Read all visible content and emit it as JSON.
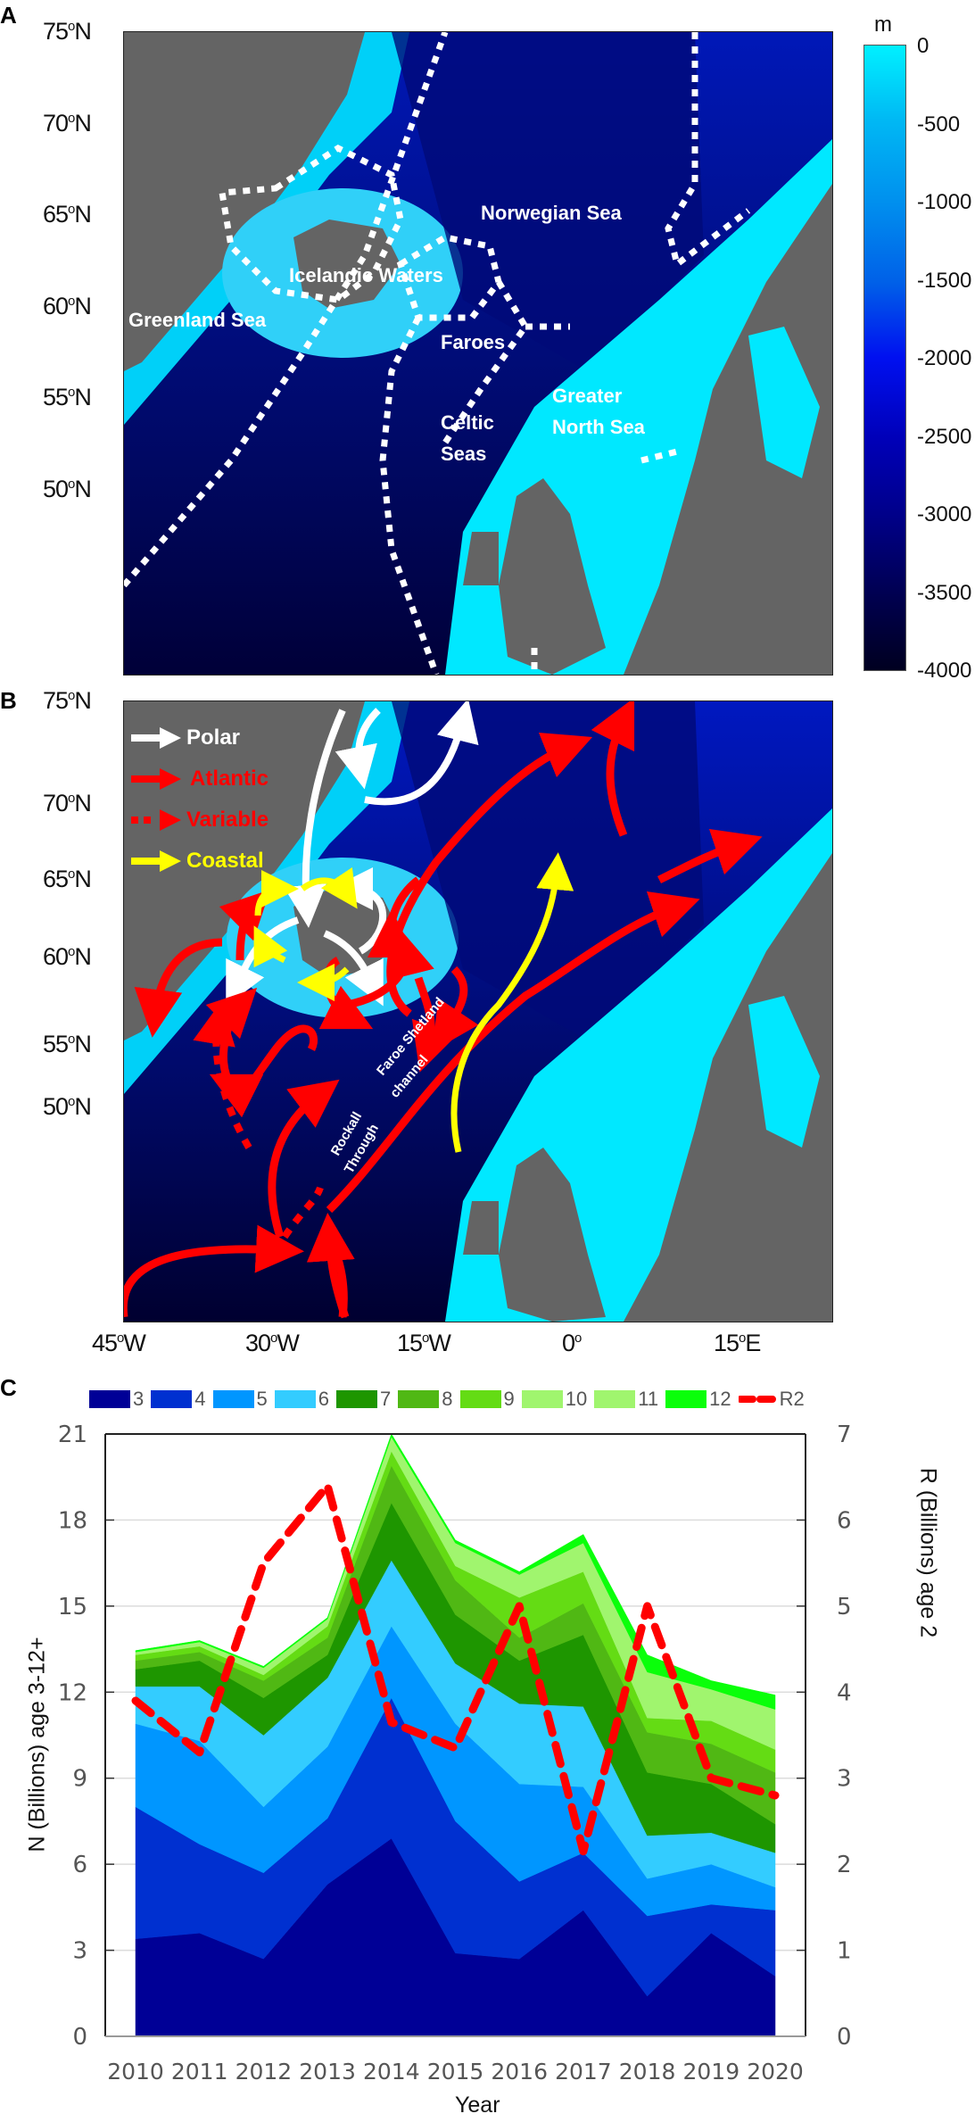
{
  "panels": {
    "A": {
      "letter": "A",
      "lat_ticks": [
        "75",
        "70",
        "65",
        "60",
        "55",
        "50"
      ],
      "lat_suffix": "N",
      "regions": [
        "Norwegian Sea",
        "Icelandic Waters",
        "Greenland Sea",
        "Faroes",
        "Celtic",
        "Seas",
        "Greater",
        "North Sea"
      ],
      "colorbar": {
        "unit": "m",
        "ticks": [
          "0",
          "-500",
          "-1000",
          "-1500",
          "-2000",
          "-2500",
          "-3000",
          "-3500",
          "-4000"
        ],
        "colors": {
          "shallow": "#00f0ff",
          "mid": "#0010f0",
          "deep": "#000020"
        }
      }
    },
    "B": {
      "letter": "B",
      "lat_ticks": [
        "75",
        "70",
        "65",
        "60",
        "55",
        "50"
      ],
      "lon_ticks": [
        "45",
        "30",
        "15",
        "0",
        "15"
      ],
      "lon_suffixes": [
        "W",
        "W",
        "W",
        "",
        "E"
      ],
      "legend": [
        {
          "label": "Polar",
          "color": "#ffffff",
          "style": "solid"
        },
        {
          "label": "Atlantic",
          "color": "#ff0000",
          "style": "solid"
        },
        {
          "label": "Variable",
          "color": "#ff0000",
          "style": "dotted"
        },
        {
          "label": "Coastal",
          "color": "#ffff00",
          "style": "solid"
        }
      ],
      "labels": [
        "Faroe Shetland",
        "channel",
        "Rockall",
        "Through"
      ]
    },
    "C": {
      "letter": "C"
    }
  },
  "chart_data": {
    "type": "area",
    "title": "",
    "xlabel": "Year",
    "ylabel": "N (Billions) age 3-12+",
    "ylabel_right": "R  (Billions) age 2",
    "categories": [
      2010,
      2011,
      2012,
      2013,
      2014,
      2015,
      2016,
      2017,
      2018,
      2019,
      2020
    ],
    "ylim": [
      0,
      21
    ],
    "yticks": [
      0,
      3,
      6,
      9,
      12,
      15,
      18,
      21
    ],
    "ylim_right": [
      0,
      7
    ],
    "yticks_right": [
      0,
      1,
      2,
      3,
      4,
      5,
      6,
      7
    ],
    "grid": true,
    "legend_position": "top",
    "stacked": true,
    "series": [
      {
        "name": "3",
        "color": "#000096",
        "values": [
          3.4,
          3.6,
          2.7,
          5.3,
          6.9,
          2.9,
          2.7,
          4.4,
          1.4,
          3.6,
          2.1
        ]
      },
      {
        "name": "4",
        "color": "#0030d0",
        "values": [
          4.6,
          3.1,
          3.0,
          2.3,
          4.9,
          4.6,
          2.7,
          2.0,
          2.8,
          1.0,
          2.3
        ]
      },
      {
        "name": "5",
        "color": "#0096ff",
        "values": [
          2.9,
          3.6,
          2.3,
          2.5,
          2.5,
          3.4,
          3.4,
          2.3,
          1.3,
          1.4,
          0.8
        ]
      },
      {
        "name": "6",
        "color": "#33ccff",
        "values": [
          1.3,
          1.9,
          2.5,
          2.4,
          2.3,
          2.1,
          2.8,
          2.8,
          1.5,
          1.1,
          1.2
        ]
      },
      {
        "name": "7",
        "color": "#1e9600",
        "values": [
          0.6,
          0.9,
          1.3,
          0.8,
          2.0,
          1.7,
          1.5,
          2.5,
          2.2,
          1.7,
          1.0
        ]
      },
      {
        "name": "8",
        "color": "#50b814",
        "values": [
          0.3,
          0.3,
          0.6,
          0.6,
          1.3,
          1.2,
          0.8,
          1.1,
          1.4,
          1.4,
          1.8
        ]
      },
      {
        "name": "9",
        "color": "#64dc14",
        "values": [
          0.2,
          0.2,
          0.2,
          0.4,
          0.5,
          0.5,
          1.4,
          1.1,
          0.5,
          0.8,
          0.8
        ]
      },
      {
        "name": "10",
        "color": "#a0f56e",
        "values": [
          0.05,
          0.1,
          0.15,
          0.15,
          0.25,
          0.4,
          0.3,
          0.5,
          0.8,
          0.5,
          0.9
        ]
      },
      {
        "name": "11",
        "color": "#a0f56e",
        "values": [
          0.05,
          0.05,
          0.1,
          0.1,
          0.25,
          0.4,
          0.5,
          0.5,
          0.8,
          0.6,
          0.5
        ]
      },
      {
        "name": "12",
        "color": "#0aff0a",
        "values": [
          0.05,
          0.05,
          0.05,
          0.05,
          0.1,
          0.1,
          0.1,
          0.3,
          0.6,
          0.3,
          0.5
        ]
      }
    ],
    "line_series": [
      {
        "name": "R2",
        "axis": "right",
        "color": "#ff0000",
        "style": "dashed",
        "values": [
          3.9,
          3.3,
          5.5,
          6.4,
          3.65,
          3.35,
          5.0,
          2.15,
          5.0,
          3.0,
          2.8
        ]
      }
    ]
  }
}
